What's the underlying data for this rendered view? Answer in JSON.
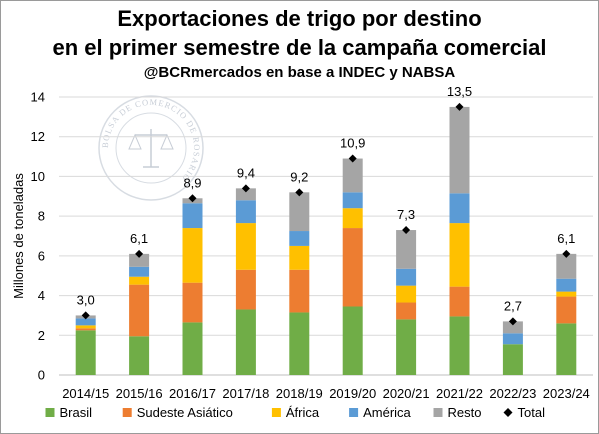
{
  "header": {
    "title_line1": "Exportaciones de trigo por destino",
    "title_line2": "en el primer semestre de la campaña comercial",
    "subtitle": "@BCRmercados en base a INDEC y NABSA"
  },
  "watermark": {
    "text": "BOLSA DE COMERCIO DE ROSARIO"
  },
  "chart_data": {
    "type": "bar",
    "stacked": true,
    "categories": [
      "2014/15",
      "2015/16",
      "2016/17",
      "2017/18",
      "2018/19",
      "2019/20",
      "2020/21",
      "2021/22",
      "2022/23",
      "2023/24"
    ],
    "series": [
      {
        "name": "Brasil",
        "color": "#70ad47",
        "values": [
          2.25,
          1.95,
          2.65,
          3.3,
          3.15,
          3.45,
          2.8,
          2.95,
          1.55,
          2.6
        ]
      },
      {
        "name": "Sudeste Asiático",
        "color": "#ed7d31",
        "values": [
          0.1,
          2.6,
          2.0,
          2.0,
          2.15,
          3.95,
          0.85,
          1.5,
          0.0,
          1.35
        ]
      },
      {
        "name": "África",
        "color": "#ffc000",
        "values": [
          0.15,
          0.4,
          2.75,
          2.35,
          1.2,
          1.0,
          0.85,
          3.2,
          0.0,
          0.25
        ]
      },
      {
        "name": "América",
        "color": "#5b9bd5",
        "values": [
          0.35,
          0.5,
          1.25,
          1.15,
          0.75,
          0.8,
          0.85,
          1.5,
          0.55,
          0.65
        ]
      },
      {
        "name": "Resto",
        "color": "#a5a5a5",
        "values": [
          0.15,
          0.65,
          0.25,
          0.6,
          1.95,
          1.7,
          1.95,
          4.35,
          0.6,
          1.25
        ]
      }
    ],
    "total": {
      "name": "Total",
      "values": [
        3.0,
        6.1,
        8.9,
        9.4,
        9.2,
        10.9,
        7.3,
        13.5,
        2.7,
        6.1
      ],
      "labels": [
        "3,0",
        "6,1",
        "8,9",
        "9,4",
        "9,2",
        "10,9",
        "7,3",
        "13,5",
        "2,7",
        "6,1"
      ]
    },
    "ylabel": "Millones de toneladas",
    "ylim": [
      0,
      14
    ],
    "yticks": [
      0,
      2,
      4,
      6,
      8,
      10,
      12,
      14
    ],
    "grid": true,
    "legend_position": "bottom"
  }
}
